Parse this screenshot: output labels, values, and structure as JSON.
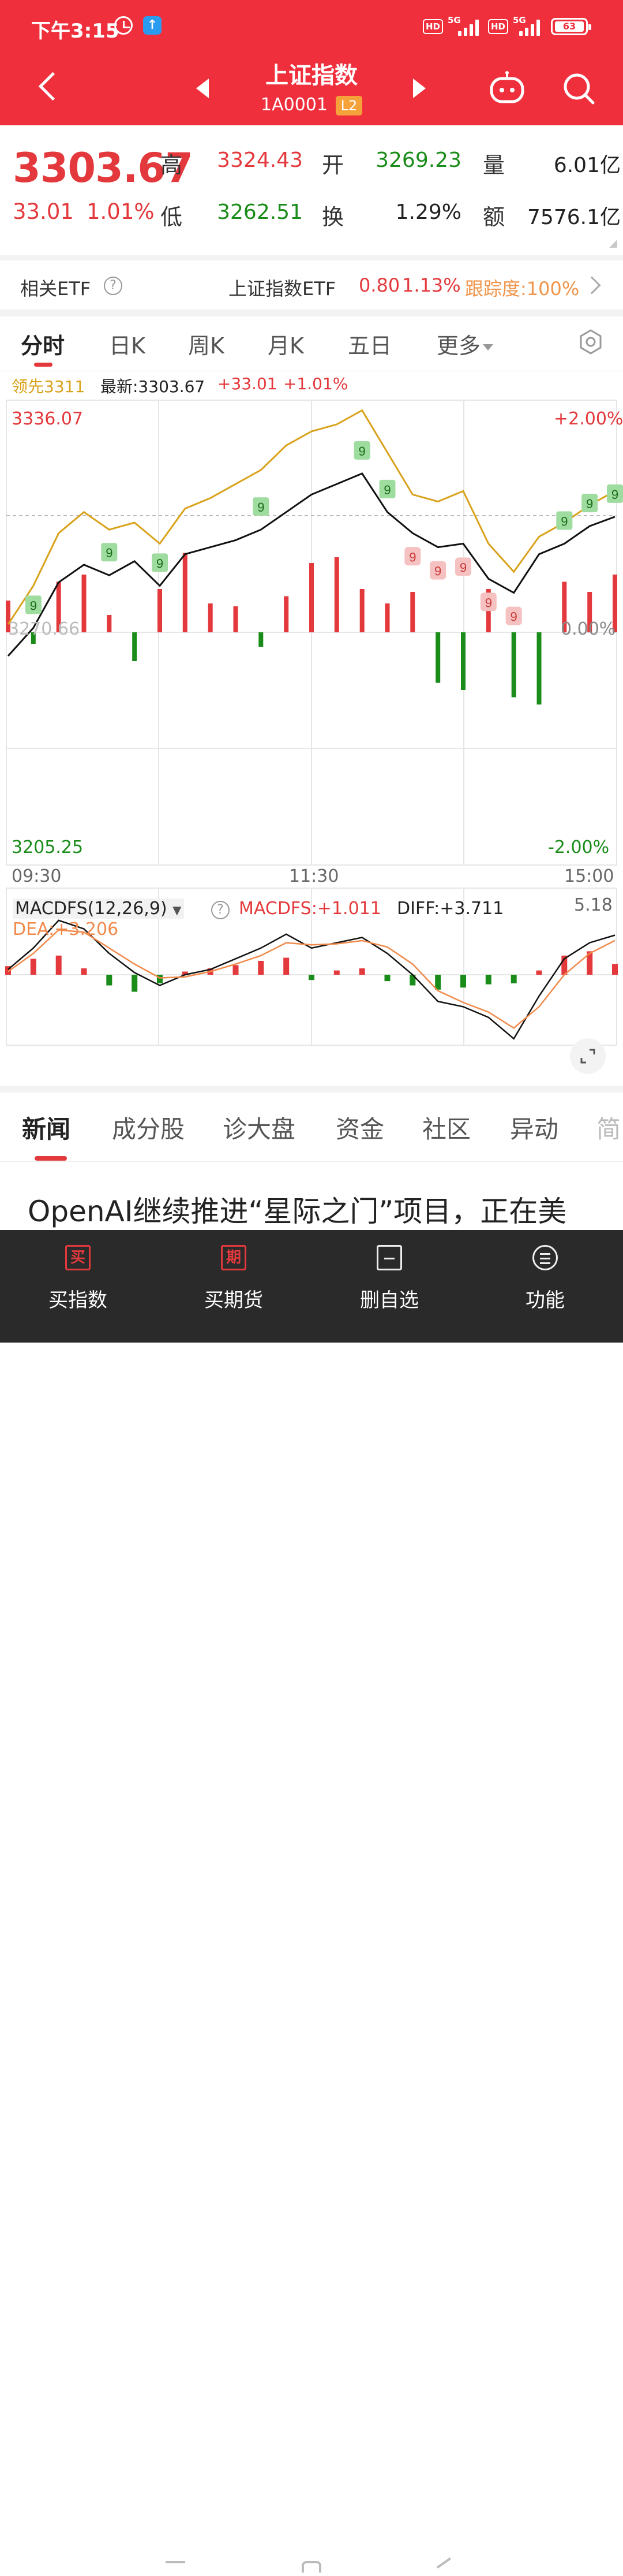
{
  "status_bar": {
    "time": "下午3:15",
    "hd1": "HD",
    "net1": "5G",
    "hd2": "HD",
    "net2": "5G",
    "battery": "63"
  },
  "nav": {
    "title": "上证指数",
    "code": "1A0001",
    "badge": "L2"
  },
  "quote": {
    "price": "3303.67",
    "change": "33.01",
    "change_pct": "1.01%",
    "high_label": "高",
    "high": "3324.43",
    "open_label": "开",
    "open": "3269.23",
    "volume_label": "量",
    "volume": "6.01亿",
    "low_label": "低",
    "low": "3262.51",
    "turnover_label": "换",
    "turnover": "1.29%",
    "amount_label": "额",
    "amount": "7576.1亿"
  },
  "etf": {
    "label": "相关ETF",
    "help": "?",
    "name": "上证指数ETF",
    "price": "0.80",
    "pct": "1.13%",
    "tracking": "跟踪度:100%"
  },
  "chart_tabs": [
    {
      "label": "分时"
    },
    {
      "label": "日K"
    },
    {
      "label": "周K"
    },
    {
      "label": "月K"
    },
    {
      "label": "五日"
    },
    {
      "label": "更多"
    }
  ],
  "legend": {
    "lead": "领先3311",
    "latest": "最新:3303.67",
    "chg": "+33.01",
    "pct": "+1.01%"
  },
  "colors": {
    "up": "#e4393c",
    "down": "#1a8c1a",
    "lead_line": "#d9a21b",
    "price_line": "#111111",
    "brand": "#ef2f3c"
  },
  "chart_data": [
    {
      "type": "line",
      "ylim": [
        3205.25,
        3336.07
      ],
      "y_top_label": "3336.07",
      "y_bottom_label": "3205.25",
      "y_ref_label": "3270.66",
      "right_top_label": "+2.00%",
      "right_zero_label": "0.00%",
      "right_bottom_label": "-2.00%",
      "x_labels": [
        "09:30",
        "11:30",
        "15:00"
      ],
      "x": [
        0,
        10,
        20,
        30,
        40,
        50,
        60,
        70,
        80,
        90,
        100,
        110,
        120,
        130,
        140,
        150,
        160,
        170,
        180,
        190,
        200,
        210,
        220,
        230,
        240
      ],
      "series": [
        {
          "values": [
            3264,
            3272,
            3285,
            3290,
            3287,
            3291,
            3284,
            3293,
            3295,
            3297,
            3300,
            3305,
            3310,
            3313,
            3316,
            3305,
            3299,
            3295,
            3296,
            3286,
            3282,
            3293,
            3296,
            3301,
            3303.67
          ]
        },
        {
          "values": [
            3273,
            3284,
            3299,
            3305,
            3300,
            3302,
            3296,
            3306,
            3309,
            3313,
            3317,
            3324,
            3328,
            3330,
            3334,
            3322,
            3310,
            3308,
            3311,
            3296,
            3288,
            3298,
            3302,
            3307,
            3311
          ]
        }
      ],
      "volume_bars": [
        22,
        -8,
        35,
        40,
        12,
        -20,
        30,
        55,
        20,
        18,
        -10,
        25,
        48,
        52,
        30,
        20,
        28,
        -35,
        -40,
        30,
        -45,
        -50,
        35,
        28,
        40
      ],
      "td_up_marks": [
        "9",
        "9",
        "9",
        "9",
        "9",
        "9",
        "9",
        "9",
        "9"
      ],
      "td_down_marks": [
        "9",
        "9",
        "9",
        "9",
        "9"
      ]
    },
    {
      "type": "line",
      "indicator": "MACDFS(12,26,9)",
      "macd_label": "MACDFS:+1.011",
      "diff_label": "DIFF:+3.711",
      "dea_label": "DEA:+3.206",
      "y_top_label": "5.18",
      "x": [
        0,
        10,
        20,
        30,
        40,
        50,
        60,
        70,
        80,
        90,
        100,
        110,
        120,
        130,
        140,
        150,
        160,
        170,
        180,
        190,
        200,
        210,
        220,
        230,
        240
      ],
      "series": [
        {
          "name": "DIFF",
          "values": [
            0.5,
            2.5,
            5.1,
            4.3,
            2.0,
            0.2,
            -1.0,
            0.0,
            0.5,
            1.5,
            2.5,
            3.8,
            2.5,
            3.0,
            3.5,
            2.0,
            0.0,
            -2.5,
            -3.0,
            -4.0,
            -6.0,
            -2.0,
            1.5,
            3.0,
            3.711
          ]
        },
        {
          "name": "DEA",
          "values": [
            0.3,
            2.0,
            4.2,
            4.0,
            2.5,
            1.0,
            -0.3,
            -0.2,
            0.3,
            1.0,
            1.8,
            3.0,
            2.8,
            2.9,
            3.2,
            2.6,
            1.0,
            -1.5,
            -2.6,
            -3.5,
            -5.0,
            -3.0,
            0.0,
            2.0,
            3.206
          ]
        }
      ],
      "macd_bars": [
        0.8,
        1.5,
        1.8,
        0.6,
        -1.0,
        -1.6,
        -0.8,
        0.3,
        0.6,
        0.9,
        1.3,
        1.6,
        -0.5,
        0.4,
        0.6,
        -0.6,
        -1.0,
        -1.4,
        -1.2,
        -0.9,
        -0.8,
        0.4,
        1.8,
        2.2,
        1.011
      ]
    }
  ],
  "news_tabs": [
    {
      "label": "新闻"
    },
    {
      "label": "成分股"
    },
    {
      "label": "诊大盘"
    },
    {
      "label": "资金"
    },
    {
      "label": "社区"
    },
    {
      "label": "异动"
    },
    {
      "label": "简"
    }
  ],
  "headline": "OpenAI继续推进“星际之门”项目，正在美",
  "bottom_bar": {
    "buy_index_icon": "买",
    "buy_index": "买指数",
    "buy_futures_icon": "期",
    "buy_futures": "买期货",
    "remove_watch": "删自选",
    "functions": "功能"
  }
}
